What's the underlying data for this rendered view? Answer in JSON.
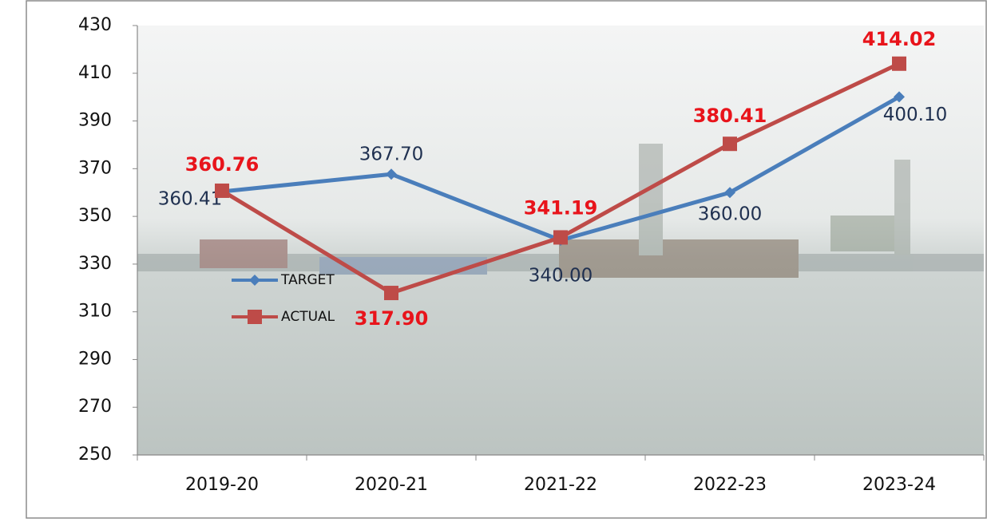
{
  "chart_data": {
    "type": "line",
    "categories": [
      "2019-20",
      "2020-21",
      "2021-22",
      "2022-23",
      "2023-24"
    ],
    "series": [
      {
        "name": "TARGET",
        "color": "#4a7ebb",
        "marker": "diamond",
        "values": [
          360.41,
          367.7,
          340,
          360,
          400.1
        ],
        "value_labels": [
          "360.41",
          "367.70",
          "340.00",
          "360.00",
          "400.10"
        ]
      },
      {
        "name": "ACTUAL",
        "color": "#be4b48",
        "marker": "square",
        "values": [
          360.76,
          317.9,
          341.19,
          380.41,
          414.02
        ],
        "value_labels": [
          "360.76",
          "317.90",
          "341.19",
          "380.41",
          "414.02"
        ]
      }
    ],
    "ylim": [
      250,
      430
    ],
    "yticks": [
      250,
      270,
      290,
      310,
      330,
      350,
      370,
      390,
      410,
      430
    ]
  }
}
